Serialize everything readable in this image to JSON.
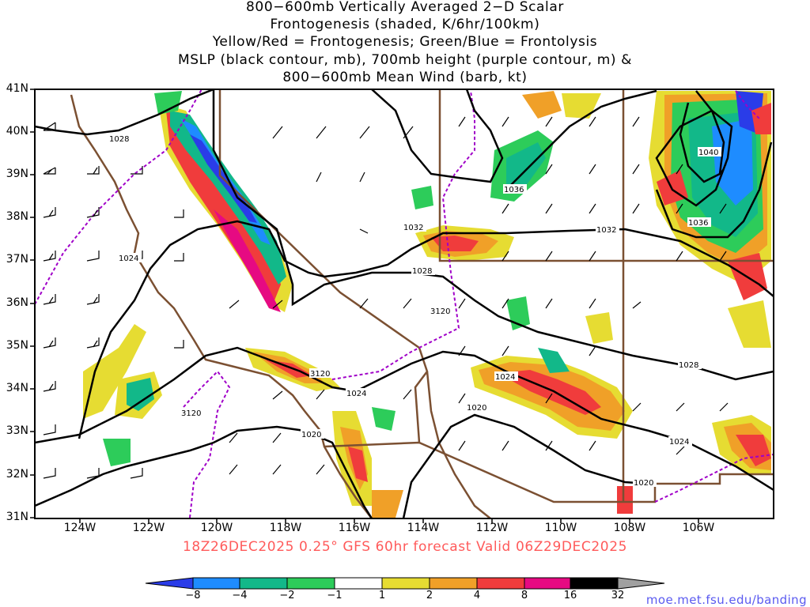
{
  "title": {
    "line1": "800−600mb Vertically Averaged 2−D Scalar",
    "line2": "Frontogenesis (shaded, K/6hr/100km)",
    "line3": "Yellow/Red = Frontogenesis;  Green/Blue = Frontolysis",
    "line4": "MSLP (black contour, mb), 700mb height (purple contour, m) &",
    "line5": "800−600mb Mean Wind (barb, kt)"
  },
  "axes": {
    "lat_labels": [
      "41N",
      "40N",
      "39N",
      "38N",
      "37N",
      "36N",
      "35N",
      "34N",
      "33N",
      "32N",
      "31N"
    ],
    "lon_labels": [
      "124W",
      "122W",
      "120W",
      "118W",
      "116W",
      "114W",
      "112W",
      "110W",
      "108W",
      "106W"
    ]
  },
  "contour_labels": {
    "mslp": [
      "1028",
      "1024",
      "1040",
      "1036",
      "1036",
      "1032",
      "1032",
      "1028",
      "1024",
      "1020",
      "1020",
      "1028",
      "1024",
      "1020",
      "1024"
    ],
    "height": [
      "3120",
      "3120",
      "3120"
    ]
  },
  "valid_line": "18Z26DEC2025 0.25° GFS 60hr forecast Valid 06Z29DEC2025",
  "colorbar": {
    "ticks": [
      "−8",
      "−4",
      "−2",
      "−1",
      "1",
      "2",
      "4",
      "8",
      "16",
      "32"
    ],
    "colors": [
      "#2a3ce8",
      "#1e8cff",
      "#12b889",
      "#2dcc5a",
      "#1ad60a",
      "#ffffff",
      "#e6dc32",
      "#f0a028",
      "#f03c3c",
      "#e60a82",
      "#000000",
      "#a0a0a0"
    ]
  },
  "colors": {
    "mslp_contour": "#000000",
    "height_contour": "#a000c8",
    "borders": "#7b5032",
    "valid_text": "#ff5a5a",
    "url_text": "#5a5af0"
  },
  "credit": "moe.met.fsu.edu/banding"
}
